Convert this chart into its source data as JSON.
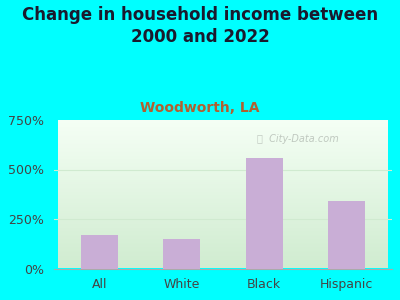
{
  "title": "Change in household income between\n2000 and 2022",
  "subtitle": "Woodworth, LA",
  "categories": [
    "All",
    "White",
    "Black",
    "Hispanic"
  ],
  "values": [
    170,
    150,
    560,
    340
  ],
  "bar_color": "#c9aed6",
  "background_outer": "#00ffff",
  "background_inner": "#e8f5e8",
  "yticks": [
    0,
    250,
    500,
    750
  ],
  "ytick_labels": [
    "0%",
    "250%",
    "500%",
    "750%"
  ],
  "ylim": [
    0,
    750
  ],
  "grid_color": "#d0ead0",
  "watermark": "City-Data.com",
  "title_fontsize": 12,
  "subtitle_fontsize": 10,
  "subtitle_color": "#b06030",
  "tick_label_fontsize": 9,
  "title_color": "#1a1a2e"
}
